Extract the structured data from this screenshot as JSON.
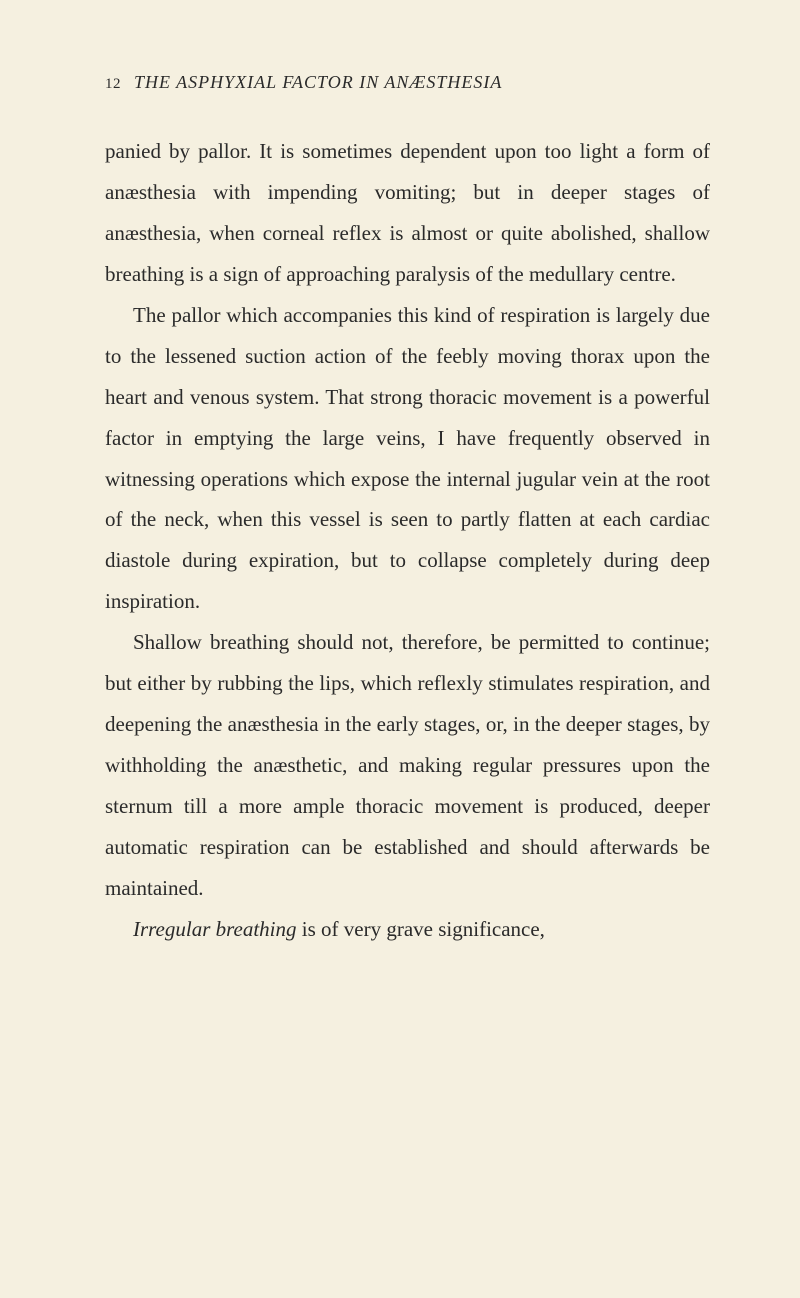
{
  "page": {
    "number": "12",
    "header_italic": "THE ASPHYXIAL FACTOR IN ANÆSTHESIA",
    "background_color": "#f5f0e0",
    "text_color": "#2a2a2a",
    "body_fontsize": 21,
    "header_fontsize": 18,
    "line_height": 1.95
  },
  "paragraphs": {
    "p1": "panied by pallor. It is sometimes dependent upon too light a form of anæsthesia with impending vomiting; but in deeper stages of anæsthesia, when corneal reflex is almost or quite abolished, shallow breathing is a sign of approaching paralysis of the medullary centre.",
    "p2": "The pallor which accompanies this kind of respiration is largely due to the lessened suction action of the feebly moving thorax upon the heart and venous system. That strong thoracic movement is a powerful factor in emptying the large veins, I have frequently observed in witnessing operations which expose the internal jugular vein at the root of the neck, when this vessel is seen to partly flatten at each cardiac diastole during expiration, but to collapse completely during deep inspiration.",
    "p3": "Shallow breathing should not, therefore, be permitted to continue; but either by rubbing the lips, which reflexly stimulates respiration, and deepening the anæsthesia in the early stages, or, in the deeper stages, by withholding the anæsthetic, and making regular pressures upon the sternum till a more ample thoracic movement is produced, deeper automatic respiration can be established and should afterwards be maintained.",
    "p4_italic": "Irregular breathing",
    "p4_rest": " is of very grave significance,"
  }
}
